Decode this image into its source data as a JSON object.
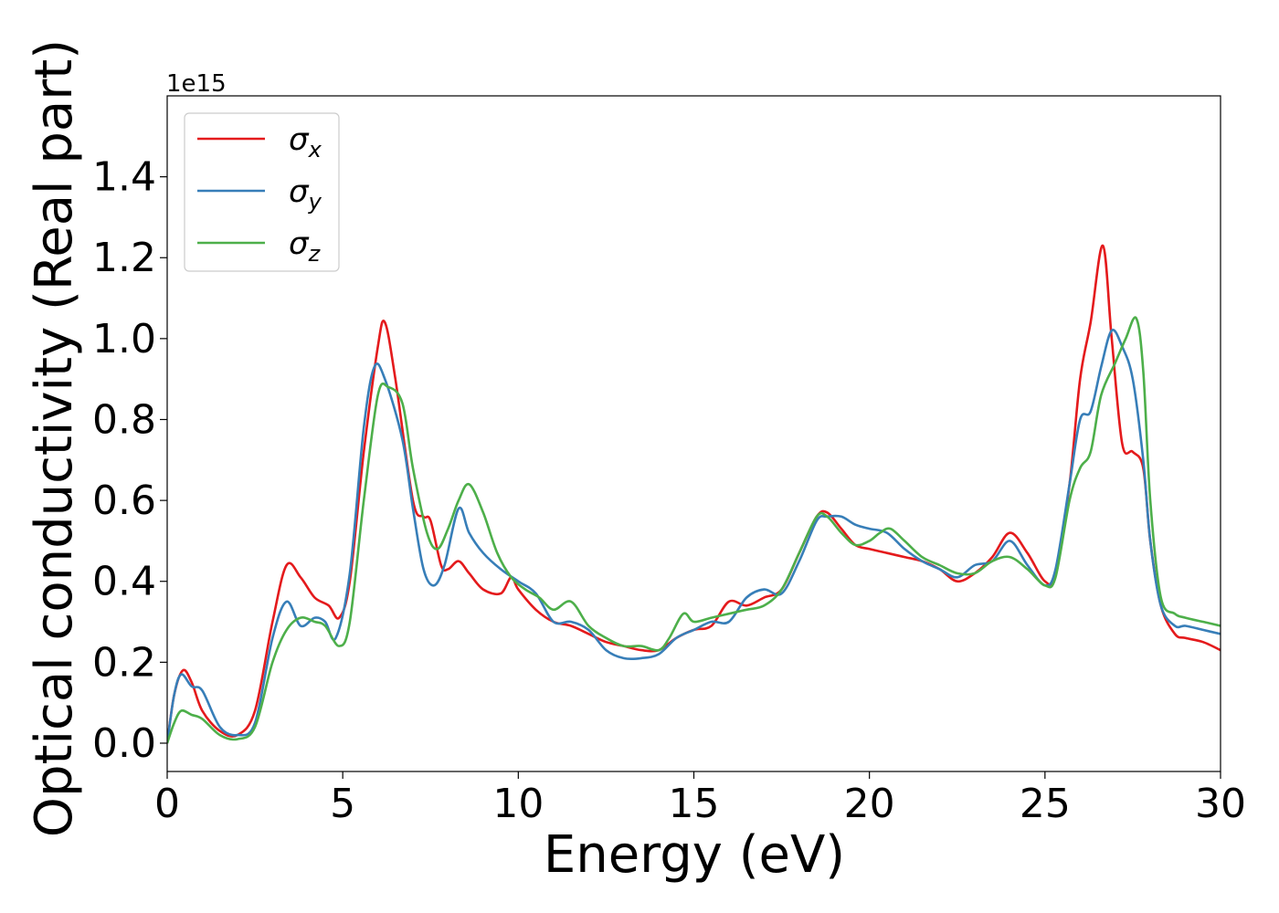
{
  "chart_data": {
    "type": "line",
    "xlabel": "Energy (eV)",
    "ylabel": "Optical conductivity (Real part)",
    "y_offset_label": "1e15",
    "xlim": [
      0,
      30
    ],
    "ylim": [
      -0.07,
      1.6
    ],
    "x_ticks": [
      0,
      5,
      10,
      15,
      20,
      25,
      30
    ],
    "x_tick_labels": [
      "0",
      "5",
      "10",
      "15",
      "20",
      "25",
      "30"
    ],
    "y_ticks": [
      0.0,
      0.2,
      0.4,
      0.6,
      0.8,
      1.0,
      1.2,
      1.4
    ],
    "y_tick_labels": [
      "0.0",
      "0.2",
      "0.4",
      "0.6",
      "0.8",
      "1.0",
      "1.2",
      "1.4"
    ],
    "legend_position": "top-left",
    "series": [
      {
        "name": "σ",
        "subscript": "x",
        "color": "#e41a1c",
        "points": [
          [
            0,
            0
          ],
          [
            0.2,
            0.12
          ],
          [
            0.45,
            0.18
          ],
          [
            0.7,
            0.15
          ],
          [
            1.0,
            0.08
          ],
          [
            1.5,
            0.03
          ],
          [
            2.0,
            0.02
          ],
          [
            2.5,
            0.08
          ],
          [
            3.0,
            0.3
          ],
          [
            3.4,
            0.44
          ],
          [
            3.8,
            0.41
          ],
          [
            4.2,
            0.36
          ],
          [
            4.6,
            0.34
          ],
          [
            4.9,
            0.31
          ],
          [
            5.2,
            0.4
          ],
          [
            5.6,
            0.72
          ],
          [
            6.0,
            0.98
          ],
          [
            6.2,
            1.04
          ],
          [
            6.5,
            0.9
          ],
          [
            7.0,
            0.6
          ],
          [
            7.3,
            0.56
          ],
          [
            7.5,
            0.55
          ],
          [
            7.8,
            0.44
          ],
          [
            8.0,
            0.43
          ],
          [
            8.3,
            0.45
          ],
          [
            8.6,
            0.42
          ],
          [
            9.0,
            0.38
          ],
          [
            9.5,
            0.37
          ],
          [
            9.8,
            0.41
          ],
          [
            10.0,
            0.38
          ],
          [
            10.5,
            0.33
          ],
          [
            11.0,
            0.3
          ],
          [
            11.5,
            0.29
          ],
          [
            12.0,
            0.27
          ],
          [
            12.5,
            0.25
          ],
          [
            13.0,
            0.24
          ],
          [
            13.5,
            0.23
          ],
          [
            14.0,
            0.23
          ],
          [
            14.5,
            0.26
          ],
          [
            15.0,
            0.28
          ],
          [
            15.5,
            0.29
          ],
          [
            16.0,
            0.35
          ],
          [
            16.5,
            0.34
          ],
          [
            17.0,
            0.36
          ],
          [
            17.5,
            0.38
          ],
          [
            18.0,
            0.47
          ],
          [
            18.5,
            0.56
          ],
          [
            18.8,
            0.57
          ],
          [
            19.2,
            0.53
          ],
          [
            19.6,
            0.49
          ],
          [
            20.0,
            0.48
          ],
          [
            20.5,
            0.47
          ],
          [
            21.0,
            0.46
          ],
          [
            21.5,
            0.45
          ],
          [
            22.0,
            0.43
          ],
          [
            22.5,
            0.4
          ],
          [
            23.0,
            0.42
          ],
          [
            23.5,
            0.46
          ],
          [
            24.0,
            0.52
          ],
          [
            24.5,
            0.47
          ],
          [
            25.0,
            0.4
          ],
          [
            25.3,
            0.42
          ],
          [
            25.7,
            0.64
          ],
          [
            26.0,
            0.9
          ],
          [
            26.3,
            1.04
          ],
          [
            26.65,
            1.23
          ],
          [
            26.9,
            1.0
          ],
          [
            27.2,
            0.74
          ],
          [
            27.5,
            0.72
          ],
          [
            27.8,
            0.68
          ],
          [
            28.0,
            0.5
          ],
          [
            28.3,
            0.34
          ],
          [
            28.7,
            0.27
          ],
          [
            29.0,
            0.26
          ],
          [
            29.5,
            0.25
          ],
          [
            30.0,
            0.23
          ]
        ]
      },
      {
        "name": "σ",
        "subscript": "y",
        "color": "#377eb8",
        "points": [
          [
            0,
            0
          ],
          [
            0.2,
            0.12
          ],
          [
            0.4,
            0.17
          ],
          [
            0.7,
            0.14
          ],
          [
            1.0,
            0.13
          ],
          [
            1.5,
            0.04
          ],
          [
            2.0,
            0.02
          ],
          [
            2.5,
            0.05
          ],
          [
            3.0,
            0.26
          ],
          [
            3.4,
            0.35
          ],
          [
            3.8,
            0.29
          ],
          [
            4.2,
            0.31
          ],
          [
            4.5,
            0.3
          ],
          [
            4.8,
            0.26
          ],
          [
            5.2,
            0.42
          ],
          [
            5.6,
            0.78
          ],
          [
            5.9,
            0.93
          ],
          [
            6.2,
            0.9
          ],
          [
            6.7,
            0.75
          ],
          [
            7.0,
            0.58
          ],
          [
            7.3,
            0.43
          ],
          [
            7.6,
            0.39
          ],
          [
            7.9,
            0.44
          ],
          [
            8.3,
            0.58
          ],
          [
            8.6,
            0.52
          ],
          [
            9.0,
            0.47
          ],
          [
            9.5,
            0.43
          ],
          [
            10.0,
            0.4
          ],
          [
            10.5,
            0.37
          ],
          [
            11.0,
            0.3
          ],
          [
            11.5,
            0.3
          ],
          [
            12.0,
            0.28
          ],
          [
            12.5,
            0.23
          ],
          [
            13.0,
            0.21
          ],
          [
            13.5,
            0.21
          ],
          [
            14.0,
            0.22
          ],
          [
            14.5,
            0.26
          ],
          [
            15.0,
            0.28
          ],
          [
            15.5,
            0.3
          ],
          [
            16.0,
            0.3
          ],
          [
            16.5,
            0.36
          ],
          [
            17.0,
            0.38
          ],
          [
            17.5,
            0.37
          ],
          [
            18.0,
            0.45
          ],
          [
            18.5,
            0.55
          ],
          [
            18.8,
            0.56
          ],
          [
            19.2,
            0.56
          ],
          [
            19.6,
            0.54
          ],
          [
            20.0,
            0.53
          ],
          [
            20.5,
            0.52
          ],
          [
            21.0,
            0.48
          ],
          [
            21.5,
            0.45
          ],
          [
            22.0,
            0.43
          ],
          [
            22.5,
            0.41
          ],
          [
            23.0,
            0.44
          ],
          [
            23.5,
            0.45
          ],
          [
            24.0,
            0.5
          ],
          [
            24.5,
            0.44
          ],
          [
            25.0,
            0.39
          ],
          [
            25.3,
            0.43
          ],
          [
            25.7,
            0.64
          ],
          [
            26.0,
            0.8
          ],
          [
            26.3,
            0.82
          ],
          [
            26.6,
            0.93
          ],
          [
            26.9,
            1.02
          ],
          [
            27.2,
            0.98
          ],
          [
            27.5,
            0.9
          ],
          [
            27.8,
            0.7
          ],
          [
            28.0,
            0.5
          ],
          [
            28.3,
            0.34
          ],
          [
            28.7,
            0.29
          ],
          [
            29.0,
            0.29
          ],
          [
            29.5,
            0.28
          ],
          [
            30.0,
            0.27
          ]
        ]
      },
      {
        "name": "σ",
        "subscript": "z",
        "color": "#4daf4a",
        "points": [
          [
            0,
            0
          ],
          [
            0.2,
            0.05
          ],
          [
            0.4,
            0.08
          ],
          [
            0.7,
            0.07
          ],
          [
            1.0,
            0.06
          ],
          [
            1.5,
            0.02
          ],
          [
            2.0,
            0.01
          ],
          [
            2.5,
            0.04
          ],
          [
            3.0,
            0.2
          ],
          [
            3.4,
            0.28
          ],
          [
            3.8,
            0.31
          ],
          [
            4.2,
            0.3
          ],
          [
            4.5,
            0.29
          ],
          [
            4.9,
            0.24
          ],
          [
            5.2,
            0.3
          ],
          [
            5.6,
            0.6
          ],
          [
            6.0,
            0.86
          ],
          [
            6.3,
            0.88
          ],
          [
            6.7,
            0.84
          ],
          [
            7.0,
            0.68
          ],
          [
            7.4,
            0.52
          ],
          [
            7.7,
            0.48
          ],
          [
            8.0,
            0.53
          ],
          [
            8.3,
            0.6
          ],
          [
            8.6,
            0.64
          ],
          [
            9.0,
            0.57
          ],
          [
            9.4,
            0.47
          ],
          [
            9.8,
            0.41
          ],
          [
            10.2,
            0.38
          ],
          [
            10.6,
            0.36
          ],
          [
            11.0,
            0.33
          ],
          [
            11.5,
            0.35
          ],
          [
            12.0,
            0.29
          ],
          [
            12.5,
            0.26
          ],
          [
            13.0,
            0.24
          ],
          [
            13.5,
            0.24
          ],
          [
            14.0,
            0.23
          ],
          [
            14.3,
            0.26
          ],
          [
            14.7,
            0.32
          ],
          [
            15.0,
            0.3
          ],
          [
            15.5,
            0.31
          ],
          [
            16.0,
            0.32
          ],
          [
            16.5,
            0.33
          ],
          [
            17.0,
            0.34
          ],
          [
            17.5,
            0.38
          ],
          [
            18.0,
            0.47
          ],
          [
            18.5,
            0.56
          ],
          [
            18.8,
            0.56
          ],
          [
            19.2,
            0.52
          ],
          [
            19.6,
            0.49
          ],
          [
            20.0,
            0.5
          ],
          [
            20.3,
            0.52
          ],
          [
            20.6,
            0.53
          ],
          [
            21.0,
            0.5
          ],
          [
            21.5,
            0.46
          ],
          [
            22.0,
            0.44
          ],
          [
            22.5,
            0.42
          ],
          [
            23.0,
            0.42
          ],
          [
            23.5,
            0.45
          ],
          [
            24.0,
            0.46
          ],
          [
            24.5,
            0.43
          ],
          [
            25.0,
            0.39
          ],
          [
            25.3,
            0.41
          ],
          [
            25.7,
            0.6
          ],
          [
            26.0,
            0.68
          ],
          [
            26.3,
            0.72
          ],
          [
            26.6,
            0.86
          ],
          [
            27.0,
            0.94
          ],
          [
            27.3,
            1.0
          ],
          [
            27.6,
            1.05
          ],
          [
            27.8,
            0.92
          ],
          [
            28.0,
            0.6
          ],
          [
            28.3,
            0.36
          ],
          [
            28.7,
            0.32
          ],
          [
            29.0,
            0.31
          ],
          [
            29.5,
            0.3
          ],
          [
            30.0,
            0.29
          ]
        ]
      }
    ]
  }
}
